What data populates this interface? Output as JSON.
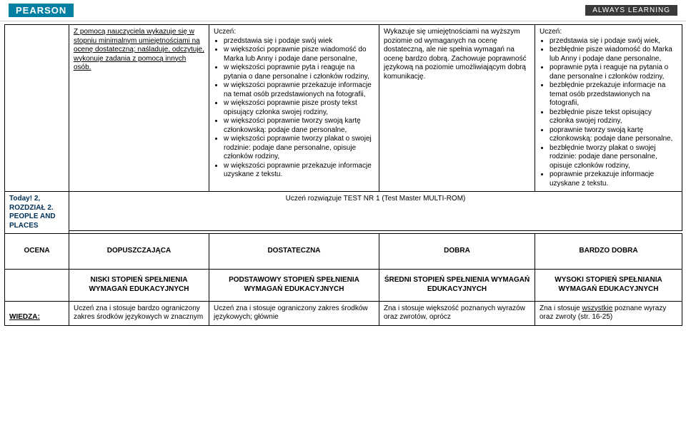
{
  "header": {
    "brand": "PEARSON",
    "tagline": "ALWAYS LEARNING"
  },
  "row1": {
    "col1": "Z pomocą nauczyciela wykazuje się w stopniu minimalnym umiejętnościami na ocenę dostateczną: naśladuje, odczytuje, wykonuje zadania z pomocą innych osób.",
    "col2_lead": "Uczeń:",
    "col2_items": [
      "przedstawia się i podaje swój wiek",
      "w większości poprawnie pisze wiadomość do Marka lub Anny i podaje dane personalne,",
      "w większości poprawnie pyta i reaguje na pytania o dane personalne i członków rodziny,",
      "w większości poprawnie przekazuje informacje na temat osób przedstawionych na fotografii,",
      "w większości poprawnie pisze prosty tekst opisujący członka swojej rodziny,",
      "w większości poprawnie tworzy swoją kartę członkowską: podaje dane personalne,",
      "w większości poprawnie tworzy plakat o swojej rodzinie: podaje dane personalne, opisuje członków rodziny,",
      "w większości poprawnie przekazuje informacje uzyskane z tekstu."
    ],
    "col3": "Wykazuje się umiejętnościami na wyższym poziomie od wymaganych na ocenę dostateczną, ale nie spełnia wymagań na ocenę bardzo dobrą. Zachowuje poprawność językową na poziomie umożliwiającym dobrą komunikację.",
    "col4_lead": "Uczeń:",
    "col4_items": [
      "przedstawia się i podaje swój wiek,",
      "bezbłędnie pisze wiadomość do Marka lub Anny i podaje dane personalne,",
      "poprawnie pyta i reaguje na pytania o dane personalne i członków rodziny,",
      "bezbłędnie przekazuje informacje na temat osób przedstawionych na fotografii,",
      "bezbłędnie pisze tekst opisujący członka swojej rodziny,",
      "poprawnie tworzy swoją kartę członkowską: podaje dane personalne,",
      "bezbłędnie tworzy plakat o swojej rodzinie: podaje dane personalne, opisuje członków rodziny,",
      "poprawnie przekazuje informacje uzyskane z tekstu."
    ]
  },
  "testline": "Uczeń rozwiązuje TEST NR 1 (Test Master MULTI-ROM)",
  "section": "Today! 2, ROZDZIAŁ 2. PEOPLE AND PLACES",
  "grades": {
    "label": "OCENA",
    "c1": "DOPUSZCZAJĄCA",
    "c2": "DOSTATECZNA",
    "c3": "DOBRA",
    "c4": "BARDZO DOBRA"
  },
  "levels": {
    "c1": "NISKI STOPIEŃ SPEŁNIENIA WYMAGAŃ EDUKACYJNYCH",
    "c2": "PODSTAWOWY STOPIEŃ SPEŁNIENIA WYMAGAŃ EDUKACYJNYCH",
    "c3": "ŚREDNI STOPIEŃ SPEŁNIENIA WYMAGAŃ EDUKACYJNYCH",
    "c4": "WYSOKI STOPIEŃ SPEŁNIANIA WYMAGAŃ EDUKACYJNYCH"
  },
  "wiedza": {
    "label": "WIEDZA:",
    "c1": "Uczeń zna i stosuje bardzo ograniczony zakres środków językowych w znacznym",
    "c2": "Uczeń zna i stosuje ograniczony zakres środków językowych; głównie",
    "c3": "Zna i stosuje większość poznanych wyrazów oraz zwrotów, oprócz",
    "c4a": "Zna i stosuje ",
    "c4u": "wszystkie",
    "c4b": " poznane wyrazy oraz zwroty (str. 16-25)"
  }
}
